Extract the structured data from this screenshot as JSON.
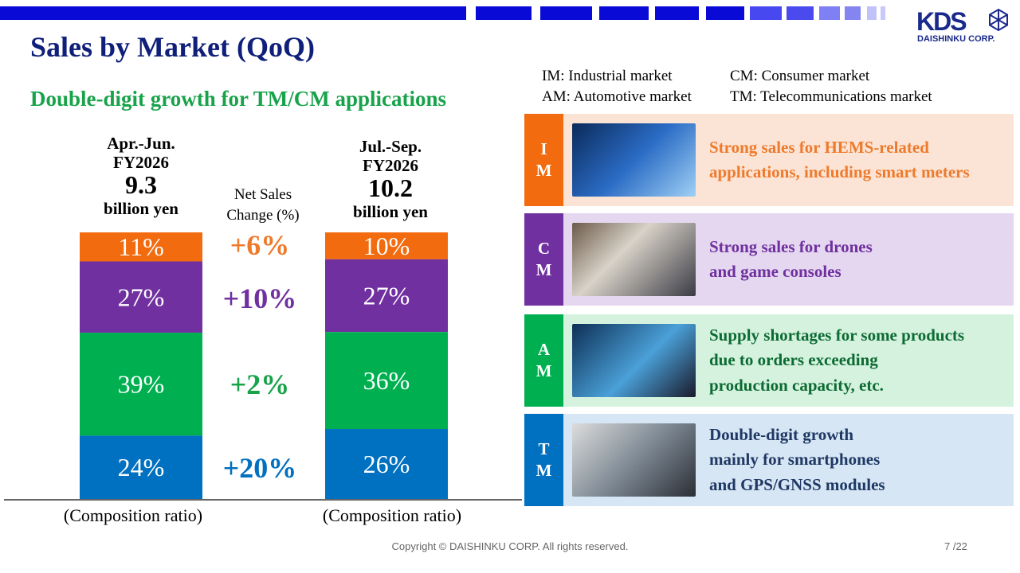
{
  "header": {
    "title": "Sales by Market (QoQ)",
    "subtitle": "Double-digit growth for TM/CM applications",
    "logo_text": "KDS",
    "logo_sub": "DAISHINKU CORP."
  },
  "legend": {
    "im": "IM: Industrial market",
    "am": "AM: Automotive market",
    "cm": "CM: Consumer market",
    "tm": "TM: Telecommunications market"
  },
  "periods": [
    {
      "period": "Apr.-Jun.",
      "fy": "FY2026",
      "value": "9.3",
      "unit": "billion yen",
      "footer": "(Composition ratio)"
    },
    {
      "period": "Jul.-Sep.",
      "fy": "FY2026",
      "value": "10.2",
      "unit": "billion yen",
      "footer": "(Composition ratio)"
    }
  ],
  "net_sales_change_label": "Net Sales Change (%)",
  "changes": [
    "+6%",
    "+10%",
    "+2%",
    "+20%"
  ],
  "chart_data": {
    "type": "bar",
    "stacked": true,
    "categories": [
      "Apr.-Jun. FY2026",
      "Jul.-Sep. FY2026"
    ],
    "series": [
      {
        "name": "IM",
        "values": [
          11,
          10
        ],
        "labels": [
          "11%",
          "10%"
        ],
        "color": "#f26b0f"
      },
      {
        "name": "CM",
        "values": [
          27,
          27
        ],
        "labels": [
          "27%",
          "27%"
        ],
        "color": "#7030a0"
      },
      {
        "name": "AM",
        "values": [
          39,
          36
        ],
        "labels": [
          "39%",
          "36%"
        ],
        "color": "#00b050"
      },
      {
        "name": "TM",
        "values": [
          24,
          26
        ],
        "labels": [
          "24%",
          "26%"
        ],
        "color": "#0070c0"
      }
    ],
    "title": "Sales by Market (QoQ)",
    "ylabel": "Composition ratio (%)"
  },
  "panels": [
    {
      "code1": "I",
      "code2": "M",
      "lines": [
        "Strong sales for HEMS-related",
        "applications, including smart meters"
      ],
      "color": "#f26b0f",
      "bg": "#fbe4d5",
      "text_color": "#ee7a2c"
    },
    {
      "code1": "C",
      "code2": "M",
      "lines": [
        "Strong sales for drones",
        "and game consoles"
      ],
      "color": "#7030a0",
      "bg": "#e4d7ef",
      "text_color": "#7030a0"
    },
    {
      "code1": "A",
      "code2": "M",
      "lines": [
        "Supply shortages for some products",
        "due to orders exceeding",
        "production capacity, etc."
      ],
      "color": "#00b050",
      "bg": "#d5f2df",
      "text_color": "#0c6b32"
    },
    {
      "code1": "T",
      "code2": "M",
      "lines": [
        "Double-digit growth",
        "mainly for smartphones",
        "and GPS/GNSS modules"
      ],
      "color": "#0070c0",
      "bg": "#d6e6f4",
      "text_color": "#1f3864"
    }
  ],
  "footer": {
    "copyright": "Copyright © DAISHINKU CORP. All rights reserved.",
    "page": "7 /22"
  }
}
